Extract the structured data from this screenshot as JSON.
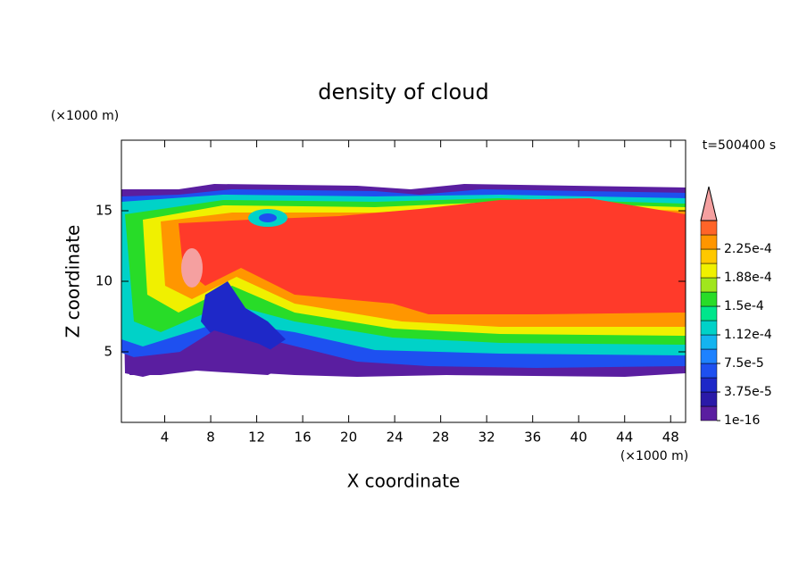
{
  "chart_data": {
    "type": "contour",
    "title": "density of cloud",
    "xlabel": "X coordinate",
    "ylabel": "Z coordinate",
    "x_unit": "(×1000 m)",
    "y_unit": "(×1000 m)",
    "time_label": "t=500400 s",
    "xlim": [
      0,
      49.3
    ],
    "xticks": [
      4,
      8,
      12,
      16,
      20,
      24,
      28,
      32,
      36,
      40,
      44,
      48
    ],
    "ylim": [
      0,
      20
    ],
    "yticks": [
      5,
      10,
      15
    ],
    "colorbar": {
      "ticks": [
        {
          "value": 1e-16,
          "label": "1e-16"
        },
        {
          "value": 3.75e-05,
          "label": "3.75e-5"
        },
        {
          "value": 7.5e-05,
          "label": "7.5e-5"
        },
        {
          "value": 0.000112,
          "label": "1.12e-4"
        },
        {
          "value": 0.00015,
          "label": "1.5e-4"
        },
        {
          "value": 0.000188,
          "label": "1.88e-4"
        },
        {
          "value": 0.000225,
          "label": "2.25e-4"
        }
      ],
      "colors": [
        "#5a1ea0",
        "#2a1aa8",
        "#1e28c8",
        "#1e50f0",
        "#1e82ff",
        "#14b4f0",
        "#00d2c8",
        "#00e68c",
        "#28dc28",
        "#a0e61e",
        "#f0f000",
        "#ffc800",
        "#ff9600",
        "#ff6428"
      ],
      "extend_color": "#f5a0a0"
    }
  }
}
